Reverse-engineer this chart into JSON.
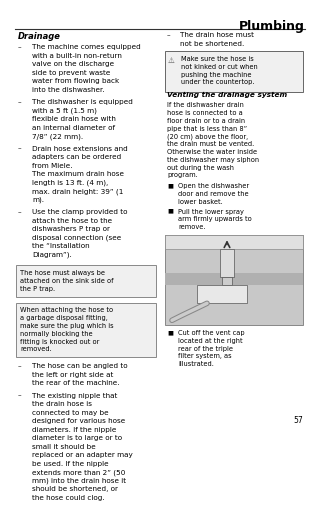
{
  "title": "Plumbing",
  "page_num": "57",
  "section_header": "Drainage",
  "bg_color": "#ffffff",
  "text_color": "#000000",
  "bullets_left": [
    "The machine comes equipped with a built-in non-return valve on the discharge side to prevent waste water from flowing back into the dishwasher.",
    "The dishwasher is equipped with a 5 ft (1.5 m) flexible drain hose with an internal diameter of 7/8” (22 mm).",
    "Drain hose extensions and adapters can be ordered from Miele.\nThe maximum drain hose length is 13 ft. (4 m), max. drain height: 39” (1 m).",
    "Use the clamp provided to attach the hose to the dishwashers P trap or disposal connection (see the “Installation Diagram”)."
  ],
  "box1_text": "The hose must always be attached on the sink side of the P trap.",
  "box2_text": "When attaching the hose to a garbage disposal fitting, make sure the plug which is normally blocking the fitting is knocked out or removed.",
  "bullets_left2": [
    "The hose can be angled to the left or right side at the rear of the machine.",
    "The existing nipple that the drain hose is connected to may be designed for various hose diameters. If the nipple diameter is to large or to small it should be replaced or an adapter may be  used. If the nipple extends more than 2” (50 mm) into the drain hose it should be shortened, or the hose could clog."
  ],
  "right_bullet1": "The drain hose must not be shortened.",
  "warning_box_text": "Make sure the hose is not kinked or cut when pushing the machine under the countertop.",
  "venting_header": "Venting the drainage system",
  "venting_text": "If the dishwasher drain hose is connected to a floor drain or to a drain pipe that is less than 8” (20 cm) above the floor, the drain must be vented. Otherwise the water inside the dishwasher may siphon out during the wash program.",
  "square_bullets_right": [
    "Open the dishwasher door and remove the lower basket.",
    "Pull the lower spray arm firmly upwards to remove."
  ],
  "caption_text": "Cut off the vent cap located at the right rear of the triple filter system, as illustrated."
}
